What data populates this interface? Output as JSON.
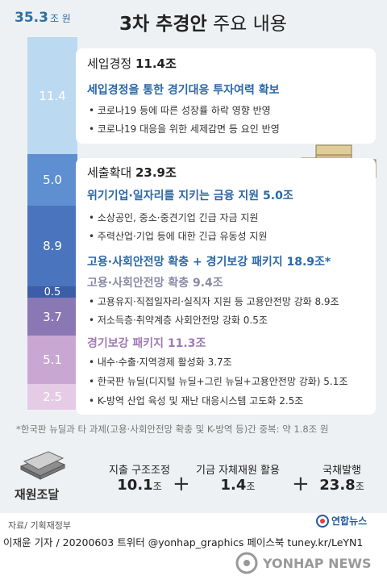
{
  "total": {
    "value": "35.3",
    "unit": "조 원"
  },
  "title_bold": "3차 추경안",
  "title_rest": "주요 내용",
  "bar_values": [
    "11.4",
    "5.0",
    "8.9",
    "0.5",
    "3.7",
    "5.1",
    "2.5"
  ],
  "sec1": {
    "title_label": "세입경정",
    "title_value": "11.4조",
    "subtitle": "세입경정을 통한 경기대응 투자여력 확보",
    "bullets": [
      "• 코로나19 등에 따른 성장률 하락 영향 반영",
      "• 코로나19 대응을 위한 세제감면 등 요인 반영"
    ]
  },
  "sec2": {
    "title_label": "세출확대",
    "title_value": "23.9조",
    "sub1": "위기기업·일자리를 지키는 금융 지원 5.0조",
    "sub1_bullets": [
      "• 소상공인, 중소·중견기업 긴급 자금 지원",
      "• 주력산업·기업 등에 대한 긴급 유동성 지원"
    ],
    "sub2": "고용·사회안전망 확충 + 경기보강 패키지 18.9조*",
    "sub3": "고용·사회안전망 확충 9.4조",
    "sub3_bullets": [
      "• 고용유지·직접일자리·실직자 지원 등 고용안전망 강화 8.9조",
      "• 저소득층·취약계층 사회안전망 강화 0.5조"
    ],
    "sub4": "경기보강 패키지 11.3조",
    "sub4_bullets": [
      "• 내수·수출·지역경제 활성화 3.7조",
      "• 한국판 뉴딜(디지털 뉴딜+그린 뉴딜+고용안전망 강화) 5.1조",
      "• K-방역 산업 육성 및 재난 대응시스템 고도화 2.5조"
    ]
  },
  "footnote": "*한국판 뉴딜과 타 과제(고용·사회안전망 확충 및 K-방역 등)간 중복: 약 1.8조 원",
  "funding": {
    "label": "재원조달",
    "items": [
      {
        "label": "지출 구조조정",
        "value": "10.1",
        "unit": "조"
      },
      {
        "label": "기금 자체재원 활용",
        "value": "1.4",
        "unit": "조"
      },
      {
        "label": "국채발행",
        "value": "23.8",
        "unit": "조"
      }
    ],
    "plus": "+"
  },
  "source": "자료/ 기획재정부",
  "logo": "연합뉴스",
  "byline": "이재윤 기자 / 20200603  트위터 @yonhap_graphics  페이스북 tuney.kr/LeYN1",
  "watermark": "YONHAP NEWS",
  "colors": {
    "bar1": "#bcd9f2",
    "bar2": "#5e8fd1",
    "bar3": "#4a74bd",
    "bar4": "#3c5ea6",
    "bar5": "#8a78b5",
    "bar6": "#c8a8d2",
    "bar7": "#e6cbe6"
  }
}
